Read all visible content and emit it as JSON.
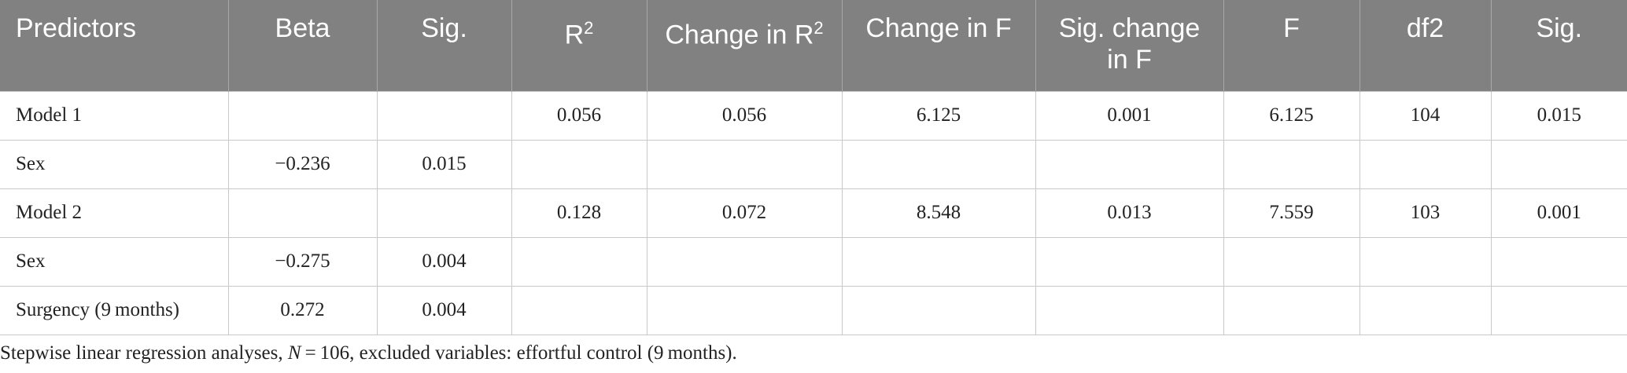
{
  "table": {
    "header": [
      "Predictors",
      "Beta",
      "Sig.",
      {
        "text": "R",
        "sup": "2"
      },
      {
        "text": "Change in R",
        "sup": "2"
      },
      "Change in F",
      "Sig. change in F",
      "F",
      "df2",
      "Sig."
    ],
    "rows": [
      [
        "Model 1",
        null,
        null,
        "0.056",
        "0.056",
        "6.125",
        "0.001",
        "6.125",
        "104",
        "0.015"
      ],
      [
        "Sex",
        "−0.236",
        "0.015",
        null,
        null,
        null,
        null,
        null,
        null,
        null
      ],
      [
        "Model 2",
        null,
        null,
        "0.128",
        "0.072",
        "8.548",
        "0.013",
        "7.559",
        "103",
        "0.001"
      ],
      [
        "Sex",
        "−0.275",
        "0.004",
        null,
        null,
        null,
        null,
        null,
        null,
        null
      ],
      [
        "Surgency (9 months)",
        "0.272",
        "0.004",
        null,
        null,
        null,
        null,
        null,
        null,
        null
      ]
    ]
  },
  "footnote": {
    "before": "Stepwise linear regression analyses, ",
    "italic": "N",
    "after": " = 106, excluded variables: effortful control (9 months)."
  }
}
